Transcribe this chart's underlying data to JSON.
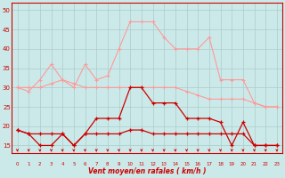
{
  "x": [
    0,
    1,
    2,
    3,
    4,
    5,
    6,
    7,
    8,
    9,
    10,
    11,
    12,
    13,
    14,
    15,
    16,
    17,
    18,
    19,
    20,
    21,
    22,
    23
  ],
  "line_rafales_max": [
    30,
    29,
    32,
    36,
    32,
    30,
    36,
    32,
    33,
    40,
    47,
    47,
    47,
    43,
    40,
    40,
    40,
    43,
    32,
    32,
    32,
    26,
    25,
    25
  ],
  "line_rafales_mean": [
    30,
    30,
    30,
    31,
    32,
    31,
    30,
    30,
    30,
    30,
    30,
    30,
    30,
    30,
    30,
    29,
    28,
    27,
    27,
    27,
    27,
    26,
    25,
    25
  ],
  "line_vent_max": [
    19,
    18,
    15,
    15,
    18,
    15,
    18,
    22,
    22,
    22,
    30,
    30,
    26,
    26,
    26,
    22,
    22,
    22,
    21,
    15,
    21,
    15,
    15,
    15
  ],
  "line_vent_mean": [
    19,
    18,
    18,
    18,
    18,
    15,
    18,
    18,
    18,
    18,
    19,
    19,
    18,
    18,
    18,
    18,
    18,
    18,
    18,
    18,
    18,
    15,
    15,
    15
  ],
  "color_dark": "#cc0000",
  "color_light": "#ff9999",
  "bg": "#cce9e9",
  "grid_color": "#aacccc",
  "xlabel": "Vent moyen/en rafales ( km/h )",
  "ylim": [
    13,
    52
  ],
  "xlim": [
    -0.5,
    23.5
  ],
  "yticks": [
    15,
    20,
    25,
    30,
    35,
    40,
    45,
    50
  ],
  "xticks": [
    0,
    1,
    2,
    3,
    4,
    5,
    6,
    7,
    8,
    9,
    10,
    11,
    12,
    13,
    14,
    15,
    16,
    17,
    18,
    19,
    20,
    21,
    22,
    23
  ]
}
